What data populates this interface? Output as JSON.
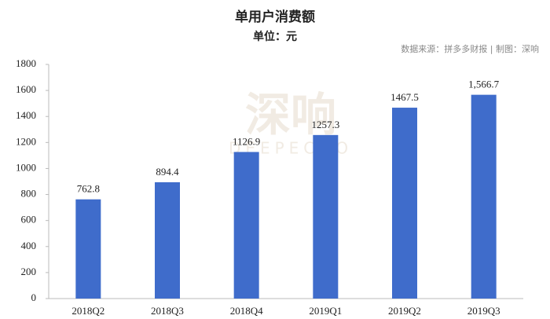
{
  "chart_data": {
    "type": "bar",
    "title": "单用户消费额",
    "subtitle": "单位：元",
    "source": "数据来源：拼多多财报 | 制图：深响",
    "watermark": [
      "深响",
      "DEEPECHO"
    ],
    "categories": [
      "2018Q2",
      "2018Q3",
      "2018Q4",
      "2019Q1",
      "2019Q2",
      "2019Q3"
    ],
    "values": [
      762.8,
      894.4,
      1126.9,
      1257.3,
      1467.5,
      1566.7
    ],
    "value_labels": [
      "762.8",
      "894.4",
      "1126.9",
      "1257.3",
      "1467.5",
      "1,566.7"
    ],
    "color": "#3f6ccb",
    "ylim": [
      0,
      1800
    ],
    "yticks": [
      0,
      200,
      400,
      600,
      800,
      1000,
      1200,
      1400,
      1600,
      1800
    ],
    "grid": false
  }
}
